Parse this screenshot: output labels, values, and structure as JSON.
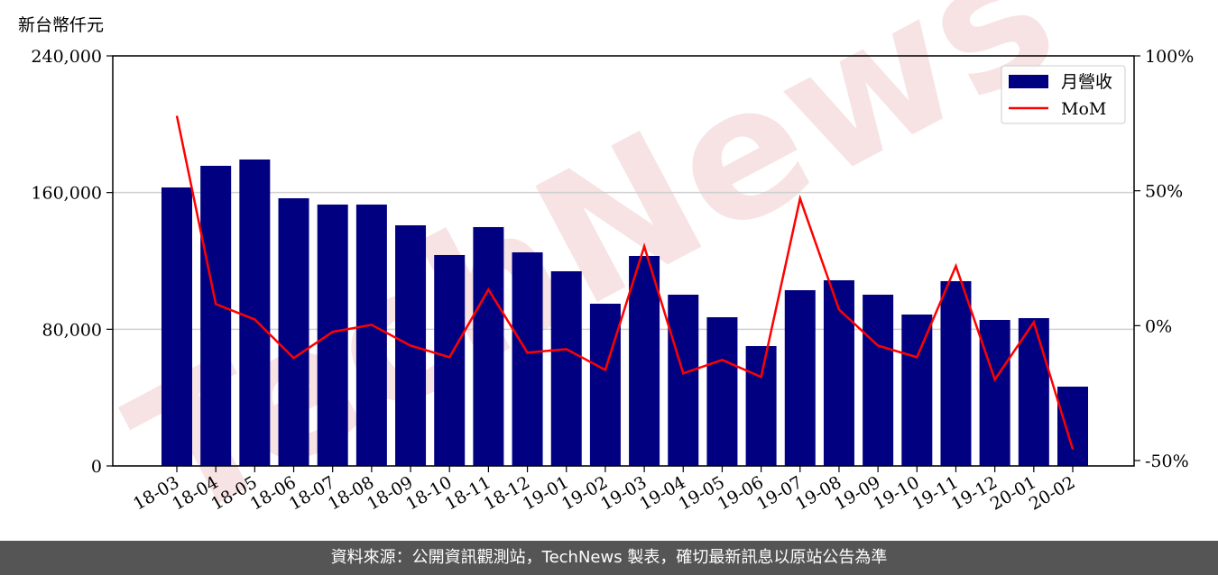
{
  "chart_data": {
    "type": "bar",
    "unit_label": "新台幣仟元",
    "watermark": "TechNews",
    "categories": [
      "18-03",
      "18-04",
      "18-05",
      "18-06",
      "18-07",
      "18-08",
      "18-09",
      "18-10",
      "18-11",
      "18-12",
      "19-01",
      "19-02",
      "19-03",
      "19-04",
      "19-05",
      "19-06",
      "19-07",
      "19-08",
      "19-09",
      "19-10",
      "19-11",
      "19-12",
      "20-01",
      "20-02"
    ],
    "series": [
      {
        "name": "月營收",
        "type": "bar",
        "color": "#000080",
        "values": [
          163000,
          175660,
          179350,
          156670,
          152980,
          152980,
          140840,
          123440,
          139790,
          125020,
          113940,
          94950,
          122910,
          100230,
          87040,
          70160,
          102860,
          108670,
          100230,
          88620,
          108140,
          85460,
          86510,
          46420
        ]
      },
      {
        "name": "MoM",
        "type": "line",
        "color": "#ff0000",
        "axis": "y2",
        "values": [
          77.8,
          8.0,
          2.3,
          -12.0,
          -2.3,
          0.3,
          -7.4,
          -11.7,
          13.4,
          -10.0,
          -8.7,
          -16.4,
          29.4,
          -17.7,
          -12.7,
          -19.0,
          47.1,
          6.0,
          -7.4,
          -11.7,
          22.1,
          -20.0,
          1.3,
          -45.8
        ]
      }
    ],
    "ylim": [
      0,
      240000
    ],
    "yticks": [
      0,
      {
        "value": 80000,
        "label": "80,000"
      },
      {
        "value": 160000,
        "label": "160,000"
      },
      {
        "value": 240000,
        "label": "240,000"
      }
    ],
    "y2lim": [
      -52,
      100
    ],
    "y2ticks": [
      {
        "value": -50,
        "label": "-50%"
      },
      {
        "value": 0,
        "label": "0%"
      },
      {
        "value": 50,
        "label": "50%"
      },
      {
        "value": 100,
        "label": "100%"
      }
    ],
    "grid": true,
    "legend": "upper right"
  },
  "footer": "資料來源：公開資訊觀測站，TechNews 製表，確切最新訊息以原站公告為準"
}
